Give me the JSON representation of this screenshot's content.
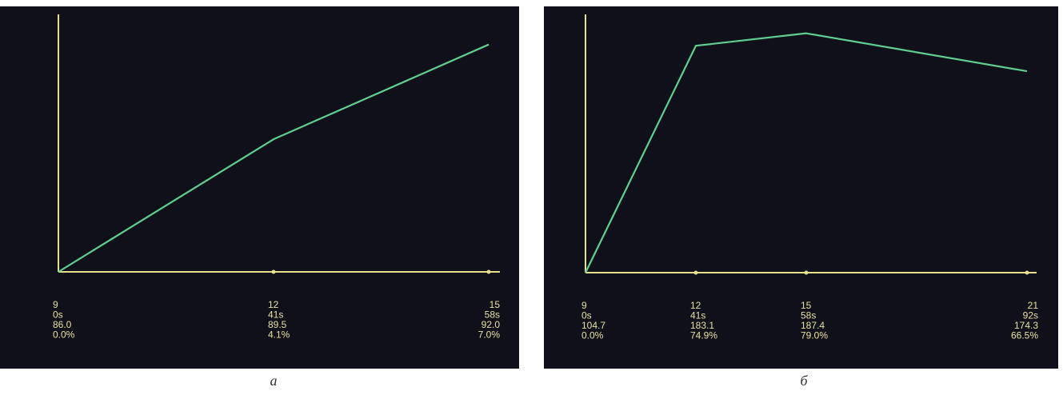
{
  "colors": {
    "background": "#10101a",
    "axis": "#e6e08c",
    "line": "#5fcf8f",
    "text": "#e8e0a0"
  },
  "chart_data": [
    {
      "type": "line",
      "panel_label": "а",
      "x": [
        9,
        12,
        15
      ],
      "ticks": [
        [
          "9",
          "0s",
          "86.0",
          "0.0%"
        ],
        [
          "12",
          "41s",
          "89.5",
          "4.1%"
        ],
        [
          "15",
          "58s",
          "92.0",
          "7.0%"
        ]
      ],
      "series": [
        {
          "values": [
            86.0,
            89.5,
            92.0
          ]
        }
      ],
      "ylim": [
        86.0,
        92.5
      ],
      "grid": false
    },
    {
      "type": "line",
      "panel_label": "б",
      "x": [
        9,
        12,
        15,
        21
      ],
      "ticks": [
        [
          "9",
          "0s",
          "104.7",
          "0.0%"
        ],
        [
          "12",
          "41s",
          "183.1",
          "74.9%"
        ],
        [
          "15",
          "58s",
          "187.4",
          "79.0%"
        ],
        [
          "21",
          "92s",
          "174.3",
          "66.5%"
        ]
      ],
      "series": [
        {
          "values": [
            104.7,
            183.1,
            187.4,
            174.3
          ]
        }
      ],
      "ylim": [
        104.7,
        192.0
      ],
      "grid": false
    }
  ]
}
